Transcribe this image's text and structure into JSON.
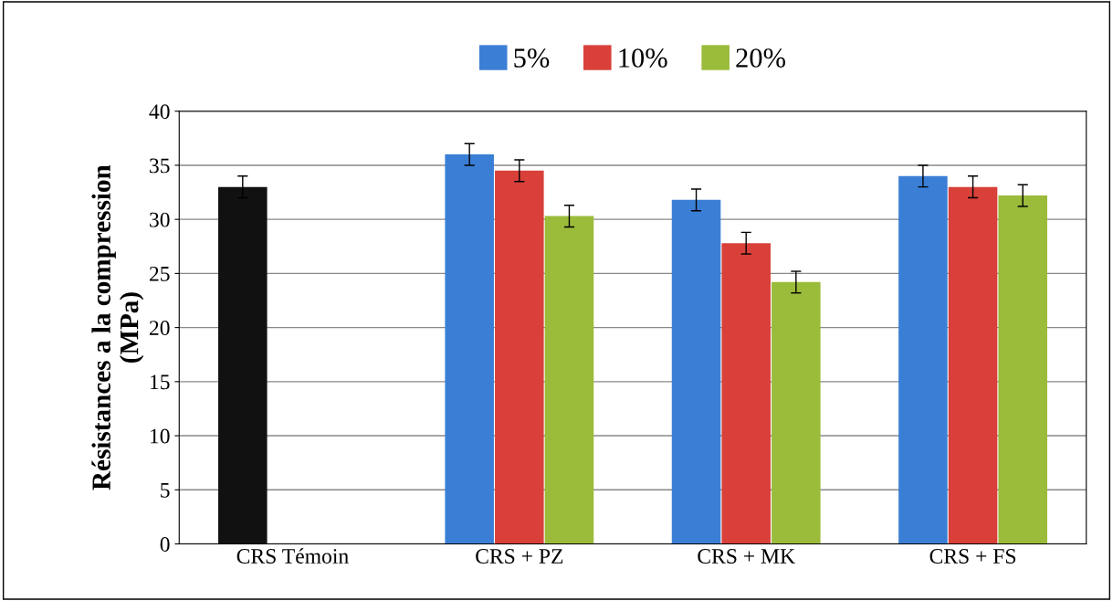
{
  "chart_data": {
    "type": "bar",
    "ylabel": "Résistances a la compression\n(MPa)",
    "categories": [
      "CRS Témoin",
      "CRS + PZ",
      "CRS + MK",
      "CRS + FS"
    ],
    "series": [
      {
        "name": "5%",
        "color": "#3a7fd5",
        "colors": [
          "#111111",
          "#3a7fd5",
          "#3a7fd5",
          "#3a7fd5"
        ],
        "values": [
          33,
          36,
          31.8,
          34
        ],
        "errors": [
          1,
          1,
          1,
          1
        ]
      },
      {
        "name": "10%",
        "color": "#d9403a",
        "values": [
          null,
          34.5,
          27.8,
          33
        ],
        "errors": [
          null,
          1,
          1,
          1
        ]
      },
      {
        "name": "20%",
        "color": "#9bbb3b",
        "values": [
          null,
          30.3,
          24.2,
          32.2
        ],
        "errors": [
          null,
          1,
          1,
          1
        ]
      }
    ],
    "ylim": [
      0,
      40
    ],
    "yticks": [
      0,
      5,
      10,
      15,
      20,
      25,
      30,
      35,
      40
    ],
    "grid": "y",
    "legend": "top"
  }
}
